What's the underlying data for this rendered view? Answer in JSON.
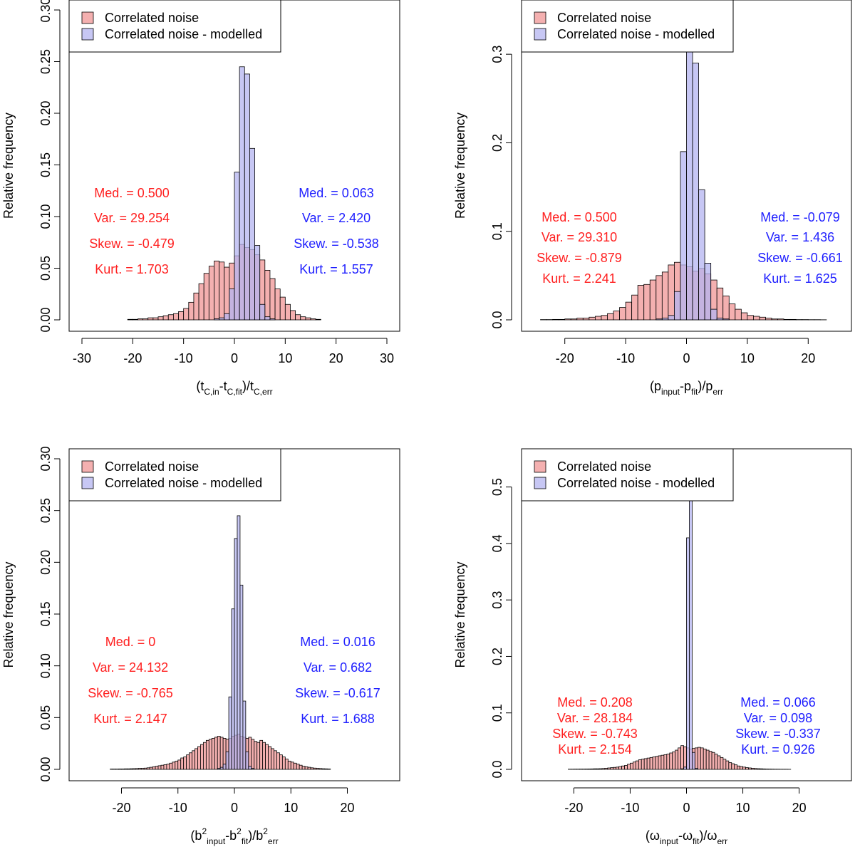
{
  "chart_data": [
    {
      "type": "histogram",
      "ylabel": "Relative frequency",
      "xlabel": {
        "base": "(t",
        "parts": [
          {
            "t": "t",
            "sub": "C,in"
          },
          {
            "t": "-t",
            "sub": "C,fit"
          },
          {
            "t": ")/t",
            "sub": "C,err"
          }
        ],
        "prefix": "("
      },
      "xlim": [
        -30,
        30
      ],
      "ylim": [
        0,
        0.3
      ],
      "xticks": [
        -30,
        -20,
        -10,
        0,
        10,
        20,
        30
      ],
      "xtick_labels": [
        "-30",
        "-20",
        "-10",
        "0",
        "10",
        "20",
        "30"
      ],
      "yticks": [
        0,
        0.05,
        0.1,
        0.15,
        0.2,
        0.25,
        0.3
      ],
      "ytick_labels": [
        "0.00",
        "0.05",
        "0.10",
        "0.15",
        "0.20",
        "0.25",
        "0.30"
      ],
      "legend": {
        "position": "top-left",
        "entries": [
          "Correlated noise",
          "Correlated noise - modelled"
        ]
      },
      "series": [
        {
          "name": "Correlated noise",
          "color": "#f4b0b0",
          "bin_width": 1,
          "start": -21,
          "values": [
            0.0005,
            0.0005,
            0.001,
            0.001,
            0.002,
            0.002,
            0.003,
            0.004,
            0.005,
            0.006,
            0.008,
            0.011,
            0.017,
            0.026,
            0.035,
            0.045,
            0.052,
            0.057,
            0.056,
            0.051,
            0.055,
            0.062,
            0.073,
            0.07,
            0.068,
            0.063,
            0.058,
            0.048,
            0.04,
            0.03,
            0.022,
            0.015,
            0.009,
            0.005,
            0.003,
            0.002,
            0.001,
            0.0005
          ]
        },
        {
          "name": "Correlated noise - modelled",
          "color": "#b4b4f0",
          "bin_width": 1,
          "start": -4,
          "values": [
            0.001,
            0.002,
            0.006,
            0.03,
            0.143,
            0.245,
            0.238,
            0.166,
            0.072,
            0.015,
            0.003,
            0.001
          ]
        }
      ],
      "annotations": {
        "left": {
          "color": "#ff2020",
          "lines": [
            "Med. =  0.500",
            "Var. =  29.254",
            "Skew. =  -0.479",
            "Kurt. =  1.703"
          ]
        },
        "right": {
          "color": "#2020ff",
          "lines": [
            "Med. =  0.063",
            "Var. =  2.420",
            "Skew. =  -0.538",
            "Kurt. =  1.557"
          ]
        }
      }
    },
    {
      "type": "histogram",
      "ylabel": "Relative frequency",
      "xlabel": {
        "prefix": "(",
        "parts": [
          {
            "t": "p",
            "sub": "input"
          },
          {
            "t": "-p",
            "sub": "fit"
          },
          {
            "t": ")/p",
            "sub": "err"
          }
        ]
      },
      "xlim": [
        -25,
        25
      ],
      "ylim": [
        0,
        0.35
      ],
      "xticks": [
        -20,
        -10,
        0,
        10,
        20
      ],
      "xtick_labels": [
        "-20",
        "-10",
        "0",
        "10",
        "20"
      ],
      "yticks": [
        0,
        0.1,
        0.2,
        0.3
      ],
      "ytick_labels": [
        "0.0",
        "0.1",
        "0.2",
        "0.3"
      ],
      "legend": {
        "position": "top-left",
        "entries": [
          "Correlated noise",
          "Correlated noise - modelled"
        ]
      },
      "series": [
        {
          "name": "Correlated noise",
          "color": "#f4b0b0",
          "bin_width": 1,
          "start": -24,
          "values": [
            0.0003,
            0.0003,
            0.0005,
            0.0005,
            0.001,
            0.001,
            0.002,
            0.002,
            0.003,
            0.004,
            0.005,
            0.007,
            0.01,
            0.014,
            0.02,
            0.028,
            0.039,
            0.04,
            0.045,
            0.05,
            0.054,
            0.062,
            0.065,
            0.062,
            0.06,
            0.055,
            0.058,
            0.052,
            0.045,
            0.036,
            0.027,
            0.018,
            0.012,
            0.008,
            0.005,
            0.004,
            0.003,
            0.002,
            0.001,
            0.001,
            0.0005,
            0.0005,
            0.0003,
            0.0003,
            0.0002,
            0.0002,
            0.0001
          ]
        },
        {
          "name": "Correlated noise - modelled",
          "color": "#b4b4f0",
          "bin_width": 1,
          "start": -5,
          "values": [
            0.001,
            0.002,
            0.005,
            0.032,
            0.19,
            0.303,
            0.29,
            0.147,
            0.064,
            0.012,
            0.002,
            0.001
          ]
        }
      ],
      "annotations": {
        "left": {
          "color": "#ff2020",
          "lines": [
            "Med. =  0.500",
            "Var. =  29.310",
            "Skew. =  -0.879",
            "Kurt. =  2.241"
          ]
        },
        "right": {
          "color": "#2020ff",
          "lines": [
            "Med. =  -0.079",
            "Var. =  1.436",
            "Skew. =  -0.661",
            "Kurt. =  1.625"
          ]
        }
      }
    },
    {
      "type": "histogram",
      "ylabel": "Relative frequency",
      "xlabel": {
        "prefix": "(",
        "parts": [
          {
            "t": "b",
            "sup": "2",
            "sub": "input"
          },
          {
            "t": "-b",
            "sup": "2",
            "sub": "fit"
          },
          {
            "t": ")/b",
            "sup": "2",
            "sub": "err"
          }
        ]
      },
      "xlim": [
        -27,
        27
      ],
      "ylim": [
        0,
        0.3
      ],
      "xticks": [
        -20,
        -10,
        0,
        10,
        20
      ],
      "xtick_labels": [
        "-20",
        "-10",
        "0",
        "10",
        "20"
      ],
      "yticks": [
        0,
        0.05,
        0.1,
        0.15,
        0.2,
        0.25,
        0.3
      ],
      "ytick_labels": [
        "0.00",
        "0.05",
        "0.10",
        "0.15",
        "0.20",
        "0.25",
        "0.30"
      ],
      "legend": {
        "position": "top-left",
        "entries": [
          "Correlated noise",
          "Correlated noise - modelled"
        ]
      },
      "series": [
        {
          "name": "Correlated noise",
          "color": "#f4b0b0",
          "bin_width": 0.5,
          "start": -22,
          "values": [
            0.0003,
            0.0003,
            0.0003,
            0.0004,
            0.0004,
            0.0005,
            0.0005,
            0.0006,
            0.0007,
            0.0008,
            0.001,
            0.001,
            0.0012,
            0.0015,
            0.002,
            0.0025,
            0.003,
            0.0035,
            0.004,
            0.0045,
            0.005,
            0.006,
            0.007,
            0.008,
            0.009,
            0.011,
            0.012,
            0.014,
            0.016,
            0.018,
            0.02,
            0.022,
            0.024,
            0.026,
            0.028,
            0.029,
            0.03,
            0.031,
            0.032,
            0.031,
            0.03,
            0.029,
            0.03,
            0.032,
            0.033,
            0.034,
            0.032,
            0.031,
            0.03,
            0.031,
            0.029,
            0.027,
            0.026,
            0.028,
            0.026,
            0.024,
            0.022,
            0.02,
            0.018,
            0.016,
            0.014,
            0.012,
            0.01,
            0.008,
            0.007,
            0.006,
            0.005,
            0.004,
            0.003,
            0.0025,
            0.002,
            0.0015,
            0.0012,
            0.001,
            0.0008,
            0.0006,
            0.0005,
            0.0004
          ]
        },
        {
          "name": "Correlated noise - modelled",
          "color": "#b4b4f0",
          "bin_width": 0.5,
          "start": -3,
          "values": [
            0.001,
            0.002,
            0.005,
            0.017,
            0.07,
            0.155,
            0.223,
            0.245,
            0.178,
            0.066,
            0.017,
            0.003,
            0.001
          ]
        }
      ],
      "annotations": {
        "left": {
          "color": "#ff2020",
          "lines": [
            "Med. = 0",
            "Var. =  24.132",
            "Skew. =  -0.765",
            "Kurt. =  2.147"
          ]
        },
        "right": {
          "color": "#2020ff",
          "lines": [
            "Med. =  0.016",
            "Var. =  0.682",
            "Skew. =  -0.617",
            "Kurt. =  1.688"
          ]
        }
      }
    },
    {
      "type": "histogram",
      "ylabel": "Relative frequency",
      "xlabel": {
        "prefix": "(",
        "parts": [
          {
            "t": "ω",
            "sub": "input"
          },
          {
            "t": "-ω",
            "sub": "fit"
          },
          {
            "t": ")/ω",
            "sub": "err"
          }
        ]
      },
      "xlim": [
        -27,
        27
      ],
      "ylim": [
        0,
        0.55
      ],
      "xticks": [
        -20,
        -10,
        0,
        10,
        20
      ],
      "xtick_labels": [
        "-20",
        "-10",
        "0",
        "10",
        "20"
      ],
      "yticks": [
        0,
        0.1,
        0.2,
        0.3,
        0.4,
        0.5
      ],
      "ytick_labels": [
        "0.0",
        "0.1",
        "0.2",
        "0.3",
        "0.4",
        "0.5"
      ],
      "legend": {
        "position": "top-left",
        "entries": [
          "Correlated noise",
          "Correlated noise - modelled"
        ]
      },
      "series": [
        {
          "name": "Correlated noise",
          "color": "#f4b0b0",
          "bin_width": 0.5,
          "start": -21,
          "values": [
            0.0003,
            0.0003,
            0.0004,
            0.0004,
            0.0005,
            0.0005,
            0.0006,
            0.0007,
            0.0008,
            0.001,
            0.001,
            0.0012,
            0.0015,
            0.002,
            0.0025,
            0.003,
            0.0035,
            0.004,
            0.005,
            0.006,
            0.007,
            0.009,
            0.011,
            0.013,
            0.015,
            0.017,
            0.018,
            0.019,
            0.02,
            0.021,
            0.022,
            0.023,
            0.024,
            0.025,
            0.026,
            0.027,
            0.029,
            0.031,
            0.034,
            0.038,
            0.042,
            0.04,
            0.038,
            0.036,
            0.037,
            0.038,
            0.039,
            0.038,
            0.036,
            0.034,
            0.032,
            0.03,
            0.027,
            0.024,
            0.021,
            0.018,
            0.015,
            0.012,
            0.01,
            0.008,
            0.006,
            0.005,
            0.004,
            0.003,
            0.0025,
            0.002,
            0.0015,
            0.0012,
            0.001,
            0.0008,
            0.0006,
            0.0005,
            0.0004,
            0.0003,
            0.0003,
            0.0002,
            0.0002,
            0.0002,
            0.0001
          ]
        },
        {
          "name": "Correlated noise - modelled",
          "color": "#b4b4f0",
          "bin_width": 0.5,
          "start": -1,
          "values": [
            0.001,
            0.004,
            0.41,
            0.5,
            0.03,
            0.002
          ]
        }
      ],
      "annotations": {
        "left": {
          "color": "#ff2020",
          "lines": [
            "Med. =  0.208",
            "Var. =  28.184",
            "Skew. =  -0.743",
            "Kurt. =  2.154"
          ]
        },
        "right": {
          "color": "#2020ff",
          "lines": [
            "Med. =  0.066",
            "Var. =  0.098",
            "Skew. =  -0.337",
            "Kurt. =  0.926"
          ]
        }
      }
    }
  ]
}
